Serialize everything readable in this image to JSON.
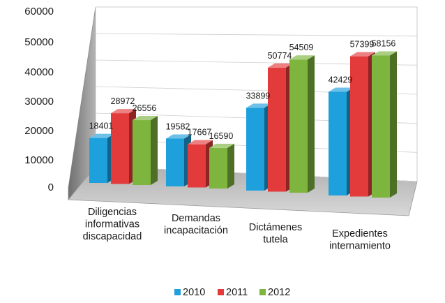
{
  "chart_data": {
    "type": "bar",
    "title": "",
    "xlabel": "",
    "ylabel": "",
    "ylim": [
      0,
      60000
    ],
    "yticks": [
      0,
      10000,
      20000,
      30000,
      40000,
      50000,
      60000
    ],
    "categories": [
      [
        "Diligencias",
        "informativas",
        "discapacidad"
      ],
      [
        "Demandas",
        "incapacitación"
      ],
      [
        "Dictámenes",
        "tutela"
      ],
      [
        "Expedientes",
        "internamiento"
      ]
    ],
    "series": [
      {
        "name": "2010",
        "color": "#1ea0dc",
        "values": [
          18401,
          19582,
          33899,
          42429
        ]
      },
      {
        "name": "2011",
        "color": "#e33b3b",
        "values": [
          28972,
          17667,
          50774,
          57399
        ]
      },
      {
        "name": "2012",
        "color": "#7eb53e",
        "values": [
          26556,
          16590,
          54509,
          58156
        ]
      }
    ],
    "legend_position": "bottom",
    "grid": true
  }
}
